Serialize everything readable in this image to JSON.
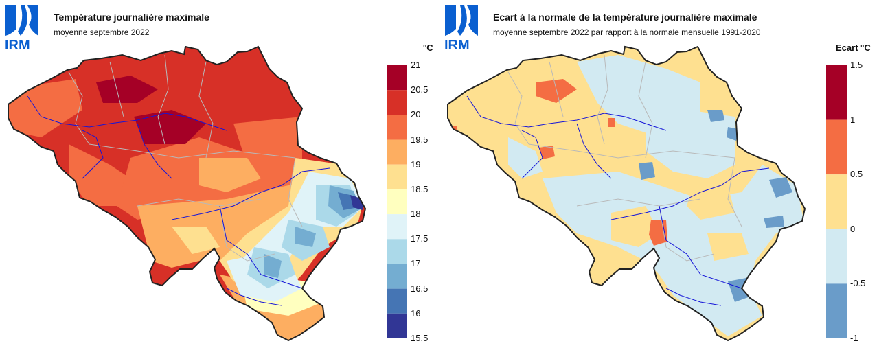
{
  "panels": [
    {
      "logo_text": "IRM",
      "title": "Température journalière maximale",
      "subtitle": "moyenne septembre 2022",
      "unit": "°C",
      "legend": {
        "ticks": [
          "21",
          "20.5",
          "20",
          "19.5",
          "19",
          "18.5",
          "18",
          "17.5",
          "17",
          "16.5",
          "16",
          "15.5"
        ],
        "colors": [
          "#a50026",
          "#d73027",
          "#f46d43",
          "#fdae61",
          "#fee090",
          "#ffffbf",
          "#e0f3f8",
          "#abd9e9",
          "#74add1",
          "#4575b4",
          "#313695"
        ]
      }
    },
    {
      "logo_text": "IRM",
      "title": "Ecart à la normale de la température journalière maximale",
      "subtitle": "moyenne septembre 2022 par rapport à la normale mensuelle 1991-2020",
      "unit": "Ecart °C",
      "legend": {
        "ticks": [
          "1.5",
          "1",
          "0.5",
          "0",
          "-0.5",
          "-1"
        ],
        "colors": [
          "#a50026",
          "#f46d43",
          "#fee090",
          "#d2eaf2",
          "#6a9cc9"
        ]
      }
    }
  ]
}
